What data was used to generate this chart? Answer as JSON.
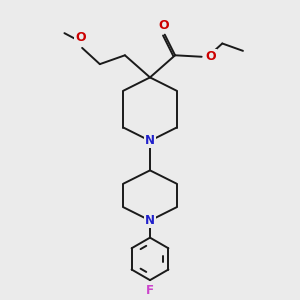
{
  "bg_color": "#ebebeb",
  "bond_color": "#1a1a1a",
  "n_color": "#2020cc",
  "o_color": "#cc0000",
  "f_color": "#cc44cc",
  "line_width": 1.4,
  "fig_size": [
    3.0,
    3.0
  ],
  "xlim": [
    1.0,
    9.0
  ],
  "ylim": [
    0.2,
    10.2
  ]
}
